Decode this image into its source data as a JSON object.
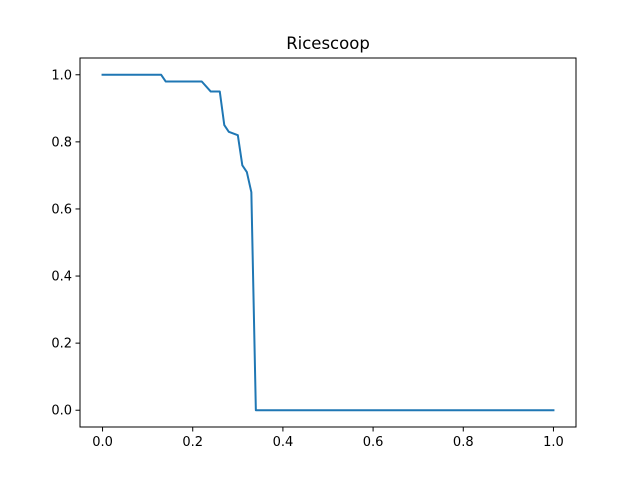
{
  "chart_data": {
    "type": "line",
    "title": "Ricescoop",
    "xlabel": "",
    "ylabel": "",
    "xlim": [
      -0.05,
      1.05
    ],
    "ylim": [
      -0.05,
      1.05
    ],
    "xticks": [
      0.0,
      0.2,
      0.4,
      0.6,
      0.8,
      1.0
    ],
    "xtick_labels": [
      "0.0",
      "0.2",
      "0.4",
      "0.6",
      "0.8",
      "1.0"
    ],
    "yticks": [
      0.0,
      0.2,
      0.4,
      0.6,
      0.8,
      1.0
    ],
    "ytick_labels": [
      "0.0",
      "0.2",
      "0.4",
      "0.6",
      "0.8",
      "1.0"
    ],
    "grid": false,
    "legend": false,
    "series": [
      {
        "color": "#1f77b4",
        "x": [
          0.0,
          0.13,
          0.14,
          0.22,
          0.24,
          0.26,
          0.27,
          0.28,
          0.3,
          0.31,
          0.32,
          0.33,
          0.34,
          1.0
        ],
        "y": [
          1.0,
          1.0,
          0.98,
          0.98,
          0.95,
          0.95,
          0.85,
          0.83,
          0.82,
          0.73,
          0.71,
          0.65,
          0.0,
          0.0
        ]
      }
    ]
  }
}
